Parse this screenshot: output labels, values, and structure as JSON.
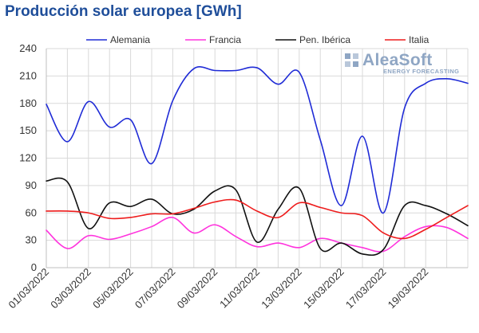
{
  "header": {
    "title": "Producción solar europea [GWh]"
  },
  "logo": {
    "name": "AleaSoft",
    "tagline": "ENERGY FORECASTING"
  },
  "chart_data": {
    "type": "line",
    "title": "Producción solar europea [GWh]",
    "xlabel": "",
    "ylabel": "",
    "ylim": [
      0,
      240
    ],
    "yticks": [
      0,
      30,
      60,
      90,
      120,
      150,
      180,
      210,
      240
    ],
    "grid": "vertical-and-horizontal",
    "legend_position": "top",
    "x": [
      "01/03/2022",
      "02/03/2022",
      "03/03/2022",
      "04/03/2022",
      "05/03/2022",
      "06/03/2022",
      "07/03/2022",
      "08/03/2022",
      "09/03/2022",
      "10/03/2022",
      "11/03/2022",
      "12/03/2022",
      "13/03/2022",
      "14/03/2022",
      "15/03/2022",
      "16/03/2022",
      "17/03/2022",
      "18/03/2022",
      "19/03/2022",
      "20/03/2022",
      "21/03/2022"
    ],
    "xtick_labels": [
      "01/03/2022",
      "03/03/2022",
      "05/03/2022",
      "07/03/2022",
      "09/03/2022",
      "11/03/2022",
      "13/03/2022",
      "15/03/2022",
      "17/03/2022",
      "19/03/2022"
    ],
    "series": [
      {
        "name": "Alemania",
        "color": "#1f2bd6",
        "values": [
          179,
          138,
          182,
          154,
          162,
          114,
          183,
          218,
          216,
          216,
          219,
          201,
          214,
          140,
          68,
          144,
          60,
          175,
          202,
          207,
          202
        ]
      },
      {
        "name": "Francia",
        "color": "#ff33dd",
        "values": [
          41,
          21,
          35,
          31,
          37,
          45,
          55,
          38,
          47,
          34,
          23,
          27,
          22,
          32,
          27,
          22,
          18,
          34,
          45,
          44,
          32
        ]
      },
      {
        "name": "Pen. Ibérica",
        "color": "#111111",
        "values": [
          95,
          94,
          43,
          71,
          67,
          75,
          59,
          64,
          84,
          85,
          28,
          64,
          87,
          21,
          27,
          15,
          20,
          68,
          68,
          59,
          46
        ]
      },
      {
        "name": "Italia",
        "color": "#ee1c1c",
        "values": [
          62,
          62,
          60,
          54,
          55,
          59,
          59,
          65,
          72,
          74,
          62,
          55,
          71,
          66,
          60,
          57,
          38,
          32,
          42,
          55,
          68
        ]
      }
    ]
  }
}
